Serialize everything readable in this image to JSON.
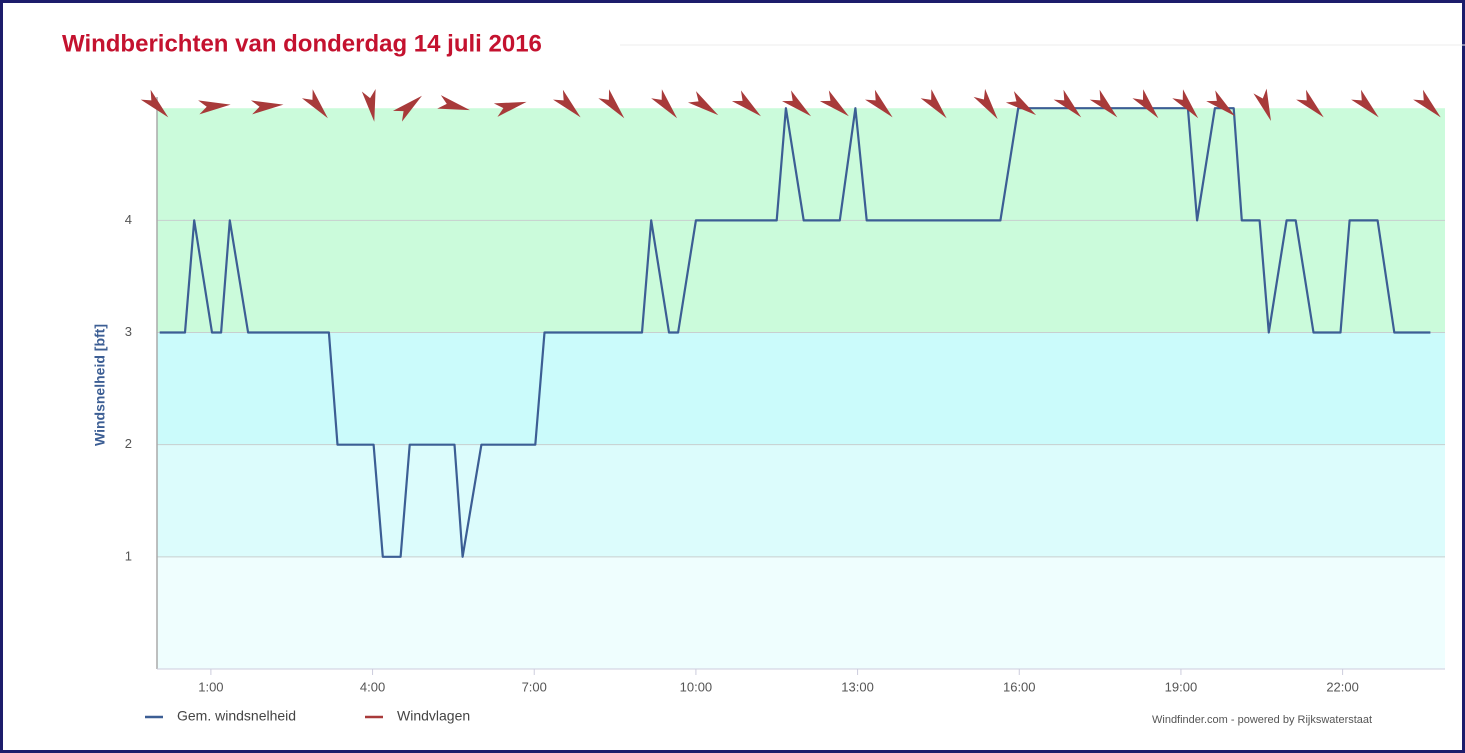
{
  "chart_data": {
    "type": "line",
    "title": "Windberichten van donderdag 14 juli 2016",
    "y_label": "Windsnelheid [bft]",
    "source": "Windfinder.com - powered by Rijkswaterstaat",
    "xlim": [
      0,
      23.9
    ],
    "ylim": [
      0,
      5.1
    ],
    "xticks": [
      {
        "value": 1,
        "label": "1:00"
      },
      {
        "value": 4,
        "label": "4:00"
      },
      {
        "value": 7,
        "label": "7:00"
      },
      {
        "value": 10,
        "label": "10:00"
      },
      {
        "value": 13,
        "label": "13:00"
      },
      {
        "value": 16,
        "label": "16:00"
      },
      {
        "value": 19,
        "label": "19:00"
      },
      {
        "value": 22,
        "label": "22:00"
      }
    ],
    "yticks": [
      1,
      2,
      3,
      4
    ],
    "grid": true,
    "bands": [
      {
        "from": 0,
        "to": 1,
        "color": "#effefe"
      },
      {
        "from": 1,
        "to": 2,
        "color": "#dcfcfc"
      },
      {
        "from": 2,
        "to": 3,
        "color": "#cbfbfb"
      },
      {
        "from": 3,
        "to": 5,
        "color": "#cbfbdb"
      }
    ],
    "series": [
      {
        "name": "Gem. windsnelheid",
        "color": "#3c5e94",
        "x": [
          0.05,
          0.52,
          0.69,
          1.02,
          1.19,
          1.35,
          1.69,
          3.19,
          3.35,
          4.02,
          4.19,
          4.52,
          4.69,
          5.52,
          5.67,
          6.02,
          7.02,
          7.19,
          9.0,
          9.17,
          9.5,
          9.67,
          10.0,
          11.5,
          11.67,
          12.0,
          12.67,
          12.96,
          13.17,
          15.65,
          15.98,
          19.13,
          19.3,
          19.63,
          19.98,
          20.13,
          20.46,
          20.63,
          20.96,
          21.13,
          21.46,
          21.96,
          22.13,
          22.65,
          22.96,
          23.63
        ],
        "values": [
          3,
          3,
          4,
          3,
          3,
          4,
          3,
          3,
          2,
          2,
          1,
          1,
          2,
          2,
          1,
          2,
          2,
          3,
          3,
          4,
          3,
          3,
          4,
          4,
          5,
          4,
          4,
          5,
          4,
          4,
          5,
          5,
          4,
          5,
          5,
          4,
          4,
          3,
          4,
          4,
          3,
          3,
          4,
          4,
          3,
          3
        ]
      },
      {
        "name": "Windvlagen",
        "color": "#a83a3a",
        "x": [
          0.0,
          1.07,
          2.05,
          2.98,
          3.98,
          4.69,
          5.52,
          6.57,
          7.65,
          8.48,
          9.46,
          10.17,
          10.98,
          11.91,
          12.61,
          13.44,
          14.46,
          15.43,
          16.07,
          16.94,
          17.61,
          18.39,
          19.13,
          19.78,
          20.57,
          21.44,
          22.46,
          23.61
        ],
        "angles": [
          45,
          -5,
          -5,
          50,
          80,
          -40,
          15,
          -15,
          45,
          50,
          50,
          35,
          40,
          40,
          40,
          45,
          50,
          55,
          35,
          45,
          45,
          50,
          50,
          40,
          70,
          45,
          45,
          45
        ]
      }
    ]
  }
}
